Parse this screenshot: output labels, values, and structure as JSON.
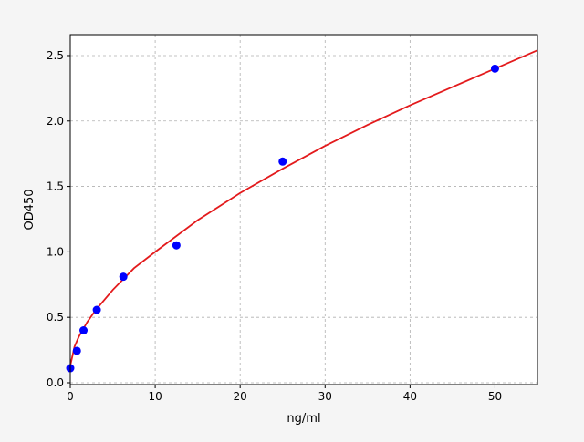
{
  "chart_data": {
    "type": "scatter",
    "title": "",
    "xlabel": "ng/ml",
    "ylabel": "OD450",
    "xlim": [
      0,
      55
    ],
    "ylim": [
      -0.014,
      2.66
    ],
    "xticks": [
      0,
      10,
      20,
      30,
      40,
      50
    ],
    "yticks": [
      0.0,
      0.5,
      1.0,
      1.5,
      2.0,
      2.5
    ],
    "xtick_labels": [
      "0",
      "10",
      "20",
      "30",
      "40",
      "50"
    ],
    "ytick_labels": [
      "0.0",
      "0.5",
      "1.0",
      "1.5",
      "2.0",
      "2.5"
    ],
    "grid": true,
    "points": {
      "color": "#0000ff",
      "x": [
        0,
        0.78,
        1.56,
        3.125,
        6.25,
        12.5,
        25,
        50
      ],
      "y": [
        0.111,
        0.244,
        0.4,
        0.557,
        0.81,
        1.05,
        1.69,
        2.4
      ]
    },
    "fit_curve": {
      "color": "#e31a1c",
      "x": [
        0,
        0.5,
        1,
        2,
        3,
        5,
        7.5,
        10,
        15,
        20,
        25,
        30,
        35,
        40,
        45,
        50,
        55
      ],
      "y": [
        0.13,
        0.276,
        0.351,
        0.464,
        0.556,
        0.709,
        0.875,
        1.0,
        1.242,
        1.45,
        1.635,
        1.81,
        1.97,
        2.12,
        2.26,
        2.4,
        2.54
      ]
    }
  }
}
